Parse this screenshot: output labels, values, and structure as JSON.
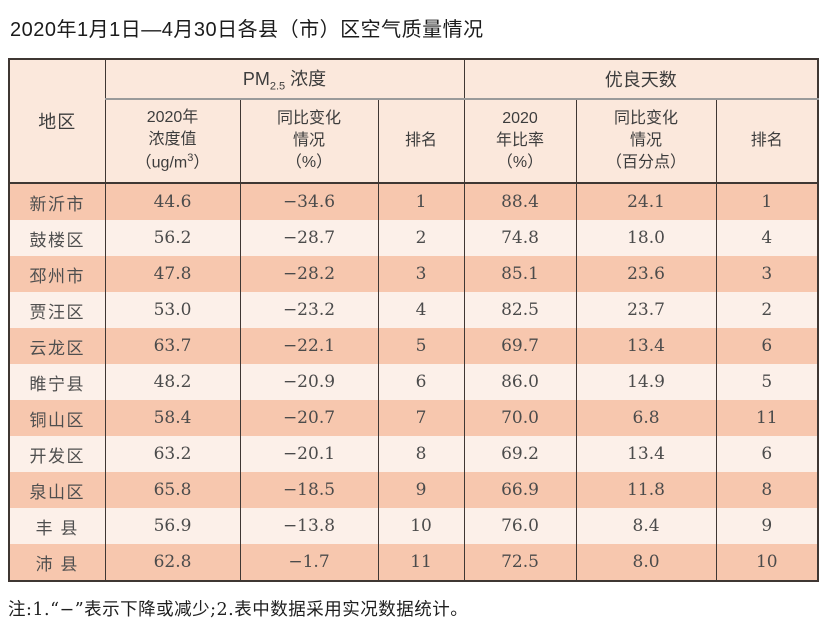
{
  "title": "2020年1月1日—4月30日各县（市）区空气质量情况",
  "colors": {
    "row_odd": "#f7c7ae",
    "row_even": "#fcf0e9",
    "header_bg": "#fbe8dc",
    "border_dark": "#3f3733",
    "divider_gray": "#9a9a9a"
  },
  "table": {
    "region_header": "地区",
    "group_pm": {
      "prefix": "PM",
      "sub": "2.5",
      "suffix": " 浓度"
    },
    "group_good": "优良天数",
    "sub_pm_value": {
      "l1": "2020年",
      "l2": "浓度值",
      "l3a": "（ug/m",
      "l3sup": "3",
      "l3b": "）"
    },
    "sub_pm_change": "同比变化\n情况\n（%）",
    "sub_pm_rank": "排名",
    "sub_good_ratio": "2020\n年比率\n（%）",
    "sub_good_change": "同比变化\n情况\n（百分点）",
    "sub_good_rank": "排名",
    "rows": [
      {
        "region": "新沂市",
        "pm_value": "44.6",
        "pm_change": "−34.6",
        "pm_rank": "1",
        "good_ratio": "88.4",
        "good_change": "24.1",
        "good_rank": "1"
      },
      {
        "region": "鼓楼区",
        "pm_value": "56.2",
        "pm_change": "−28.7",
        "pm_rank": "2",
        "good_ratio": "74.8",
        "good_change": "18.0",
        "good_rank": "4"
      },
      {
        "region": "邳州市",
        "pm_value": "47.8",
        "pm_change": "−28.2",
        "pm_rank": "3",
        "good_ratio": "85.1",
        "good_change": "23.6",
        "good_rank": "3"
      },
      {
        "region": "贾汪区",
        "pm_value": "53.0",
        "pm_change": "−23.2",
        "pm_rank": "4",
        "good_ratio": "82.5",
        "good_change": "23.7",
        "good_rank": "2"
      },
      {
        "region": "云龙区",
        "pm_value": "63.7",
        "pm_change": "−22.1",
        "pm_rank": "5",
        "good_ratio": "69.7",
        "good_change": "13.4",
        "good_rank": "6"
      },
      {
        "region": "睢宁县",
        "pm_value": "48.2",
        "pm_change": "−20.9",
        "pm_rank": "6",
        "good_ratio": "86.0",
        "good_change": "14.9",
        "good_rank": "5"
      },
      {
        "region": "铜山区",
        "pm_value": "58.4",
        "pm_change": "−20.7",
        "pm_rank": "7",
        "good_ratio": "70.0",
        "good_change": "6.8",
        "good_rank": "11"
      },
      {
        "region": "开发区",
        "pm_value": "63.2",
        "pm_change": "−20.1",
        "pm_rank": "8",
        "good_ratio": "69.2",
        "good_change": "13.4",
        "good_rank": "6"
      },
      {
        "region": "泉山区",
        "pm_value": "65.8",
        "pm_change": "−18.5",
        "pm_rank": "9",
        "good_ratio": "66.9",
        "good_change": "11.8",
        "good_rank": "8"
      },
      {
        "region": "丰 县",
        "pm_value": "56.9",
        "pm_change": "−13.8",
        "pm_rank": "10",
        "good_ratio": "76.0",
        "good_change": "8.4",
        "good_rank": "9"
      },
      {
        "region": "沛 县",
        "pm_value": "62.8",
        "pm_change": "−1.7",
        "pm_rank": "11",
        "good_ratio": "72.5",
        "good_change": "8.0",
        "good_rank": "10"
      }
    ]
  },
  "note": "注:1.“−”表示下降或减少;2.表中数据采用实况数据统计。"
}
